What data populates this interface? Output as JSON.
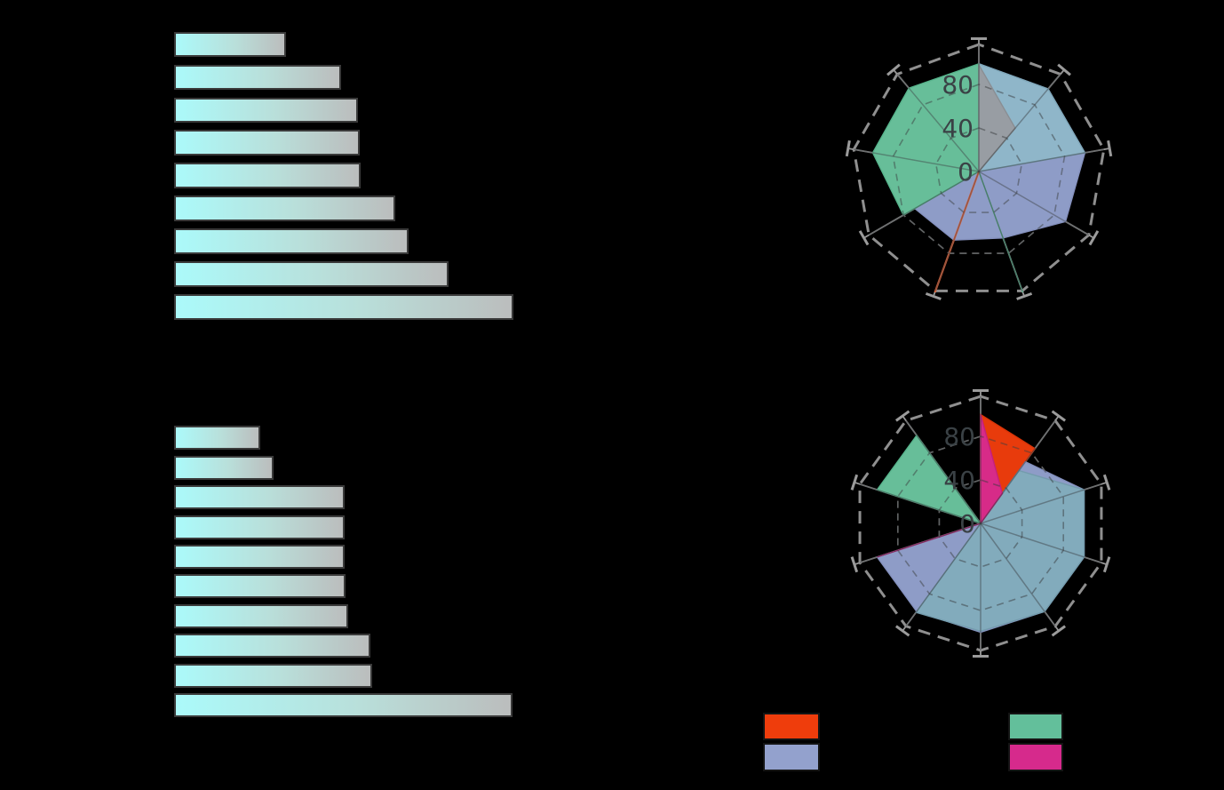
{
  "canvas": {
    "background": "#000000"
  },
  "radar_tick_labels": [
    "0",
    "40",
    "80"
  ],
  "chart_data": [
    {
      "type": "bar",
      "id": "bar-top",
      "orientation": "horizontal",
      "title": "",
      "xlabel": "",
      "ylabel": "",
      "categories": [
        "",
        "",
        "",
        "",
        "",
        "",
        "",
        "",
        ""
      ],
      "values": [
        33.0,
        49.1,
        54.1,
        54.8,
        55.0,
        65.3,
        69.2,
        80.8,
        100.0
      ],
      "value_max": 100,
      "bar_gradient_start": "#ABFAFA",
      "bar_gradient_end": "#BBBDBD",
      "bar_edge_color": "#3a3a3a",
      "grid": false
    },
    {
      "type": "bar",
      "id": "bar-bottom",
      "orientation": "horizontal",
      "title": "",
      "xlabel": "",
      "ylabel": "",
      "categories": [
        "",
        "",
        "",
        "",
        "",
        "",
        "",
        "",
        "",
        ""
      ],
      "values": [
        25.5,
        29.3,
        50.4,
        50.4,
        50.4,
        50.7,
        51.4,
        58.0,
        58.5,
        100.0
      ],
      "value_max": 100,
      "bar_gradient_start": "#ABFAFA",
      "bar_gradient_end": "#BBBDBD",
      "bar_edge_color": "#3a3a3a",
      "grid": false
    },
    {
      "type": "radar",
      "id": "radar-top",
      "axes_count": 9,
      "angle_start_deg": 90,
      "angle_step_deg": 40,
      "r_ticks": [
        0,
        40,
        80
      ],
      "r_rings_dashed": [
        40,
        80
      ],
      "r_outer_dashed": 116.7,
      "r_axis_line": 122,
      "grid_color": "#8F8F8F",
      "series": [
        {
          "name": "lavender-fill",
          "color": "#93A1CD",
          "stroke": "#8490bd",
          "values": [
            99,
            0,
            0,
            68,
            67,
            65,
            92,
            99,
            99
          ]
        },
        {
          "name": "teal-overlap-fill",
          "color": "#8FB7C9",
          "stroke": "#7fa7b9",
          "values": [
            99,
            0,
            0,
            0,
            0,
            0,
            0,
            99,
            99
          ]
        },
        {
          "name": "green-fill",
          "color": "#6AC49E",
          "stroke": "#57b48c",
          "values": [
            99,
            100,
            99,
            80,
            0,
            118,
            0,
            0,
            0
          ]
        },
        {
          "name": "gray-fill",
          "color": "#989CA1",
          "stroke": "#8a8e93",
          "values": [
            98,
            0,
            0,
            0,
            0,
            0,
            0,
            0,
            52
          ]
        },
        {
          "name": "red-line",
          "color": "none",
          "stroke": "rgba(246,92,40,0.8)",
          "line_only": true,
          "values": [
            0,
            0,
            0,
            0,
            118,
            0,
            0,
            0,
            0
          ]
        }
      ]
    },
    {
      "type": "radar",
      "id": "radar-bottom",
      "axes_count": 10,
      "angle_start_deg": 90,
      "angle_step_deg": 36,
      "r_ticks": [
        0,
        40,
        80
      ],
      "r_rings_dashed": [
        40,
        80
      ],
      "r_outer_dashed": 116.7,
      "r_axis_line": 122,
      "grid_color": "#8F8F8F",
      "series": [
        {
          "name": "orange-fill",
          "color": "#EF3D0C",
          "stroke": "#d93408",
          "values": [
            100,
            0,
            0,
            0,
            0,
            0,
            0,
            0,
            0,
            85
          ]
        },
        {
          "name": "lavender-fill",
          "color": "#93A1CD",
          "stroke": "#8490bd",
          "values": [
            0,
            0,
            0,
            100,
            100,
            100,
            100,
            100,
            100,
            70
          ]
        },
        {
          "name": "teal-overlap-fill",
          "color": "#82ABBC",
          "stroke": "#749cad",
          "values": [
            0,
            0,
            0,
            0,
            101,
            99,
            100,
            100,
            100,
            60
          ]
        },
        {
          "name": "green-fill",
          "color": "#6AC49E",
          "stroke": "#57b48c",
          "values": [
            0,
            100,
            100,
            0,
            0,
            0,
            0,
            0,
            0,
            0
          ]
        },
        {
          "name": "magenta-fill",
          "color": "#D62A8C",
          "stroke": "#c4207d",
          "values": [
            100,
            0,
            0,
            100,
            0,
            0,
            0,
            0,
            0,
            34
          ]
        }
      ]
    }
  ],
  "legend": {
    "entries": [
      {
        "name": "legend-orangered",
        "color": "#EF3D0C",
        "label": ""
      },
      {
        "name": "legend-lavender",
        "color": "#93A1CD",
        "label": ""
      },
      {
        "name": "legend-green",
        "color": "#63BF9B",
        "label": ""
      },
      {
        "name": "legend-magenta",
        "color": "#D62A8C",
        "label": ""
      }
    ]
  }
}
